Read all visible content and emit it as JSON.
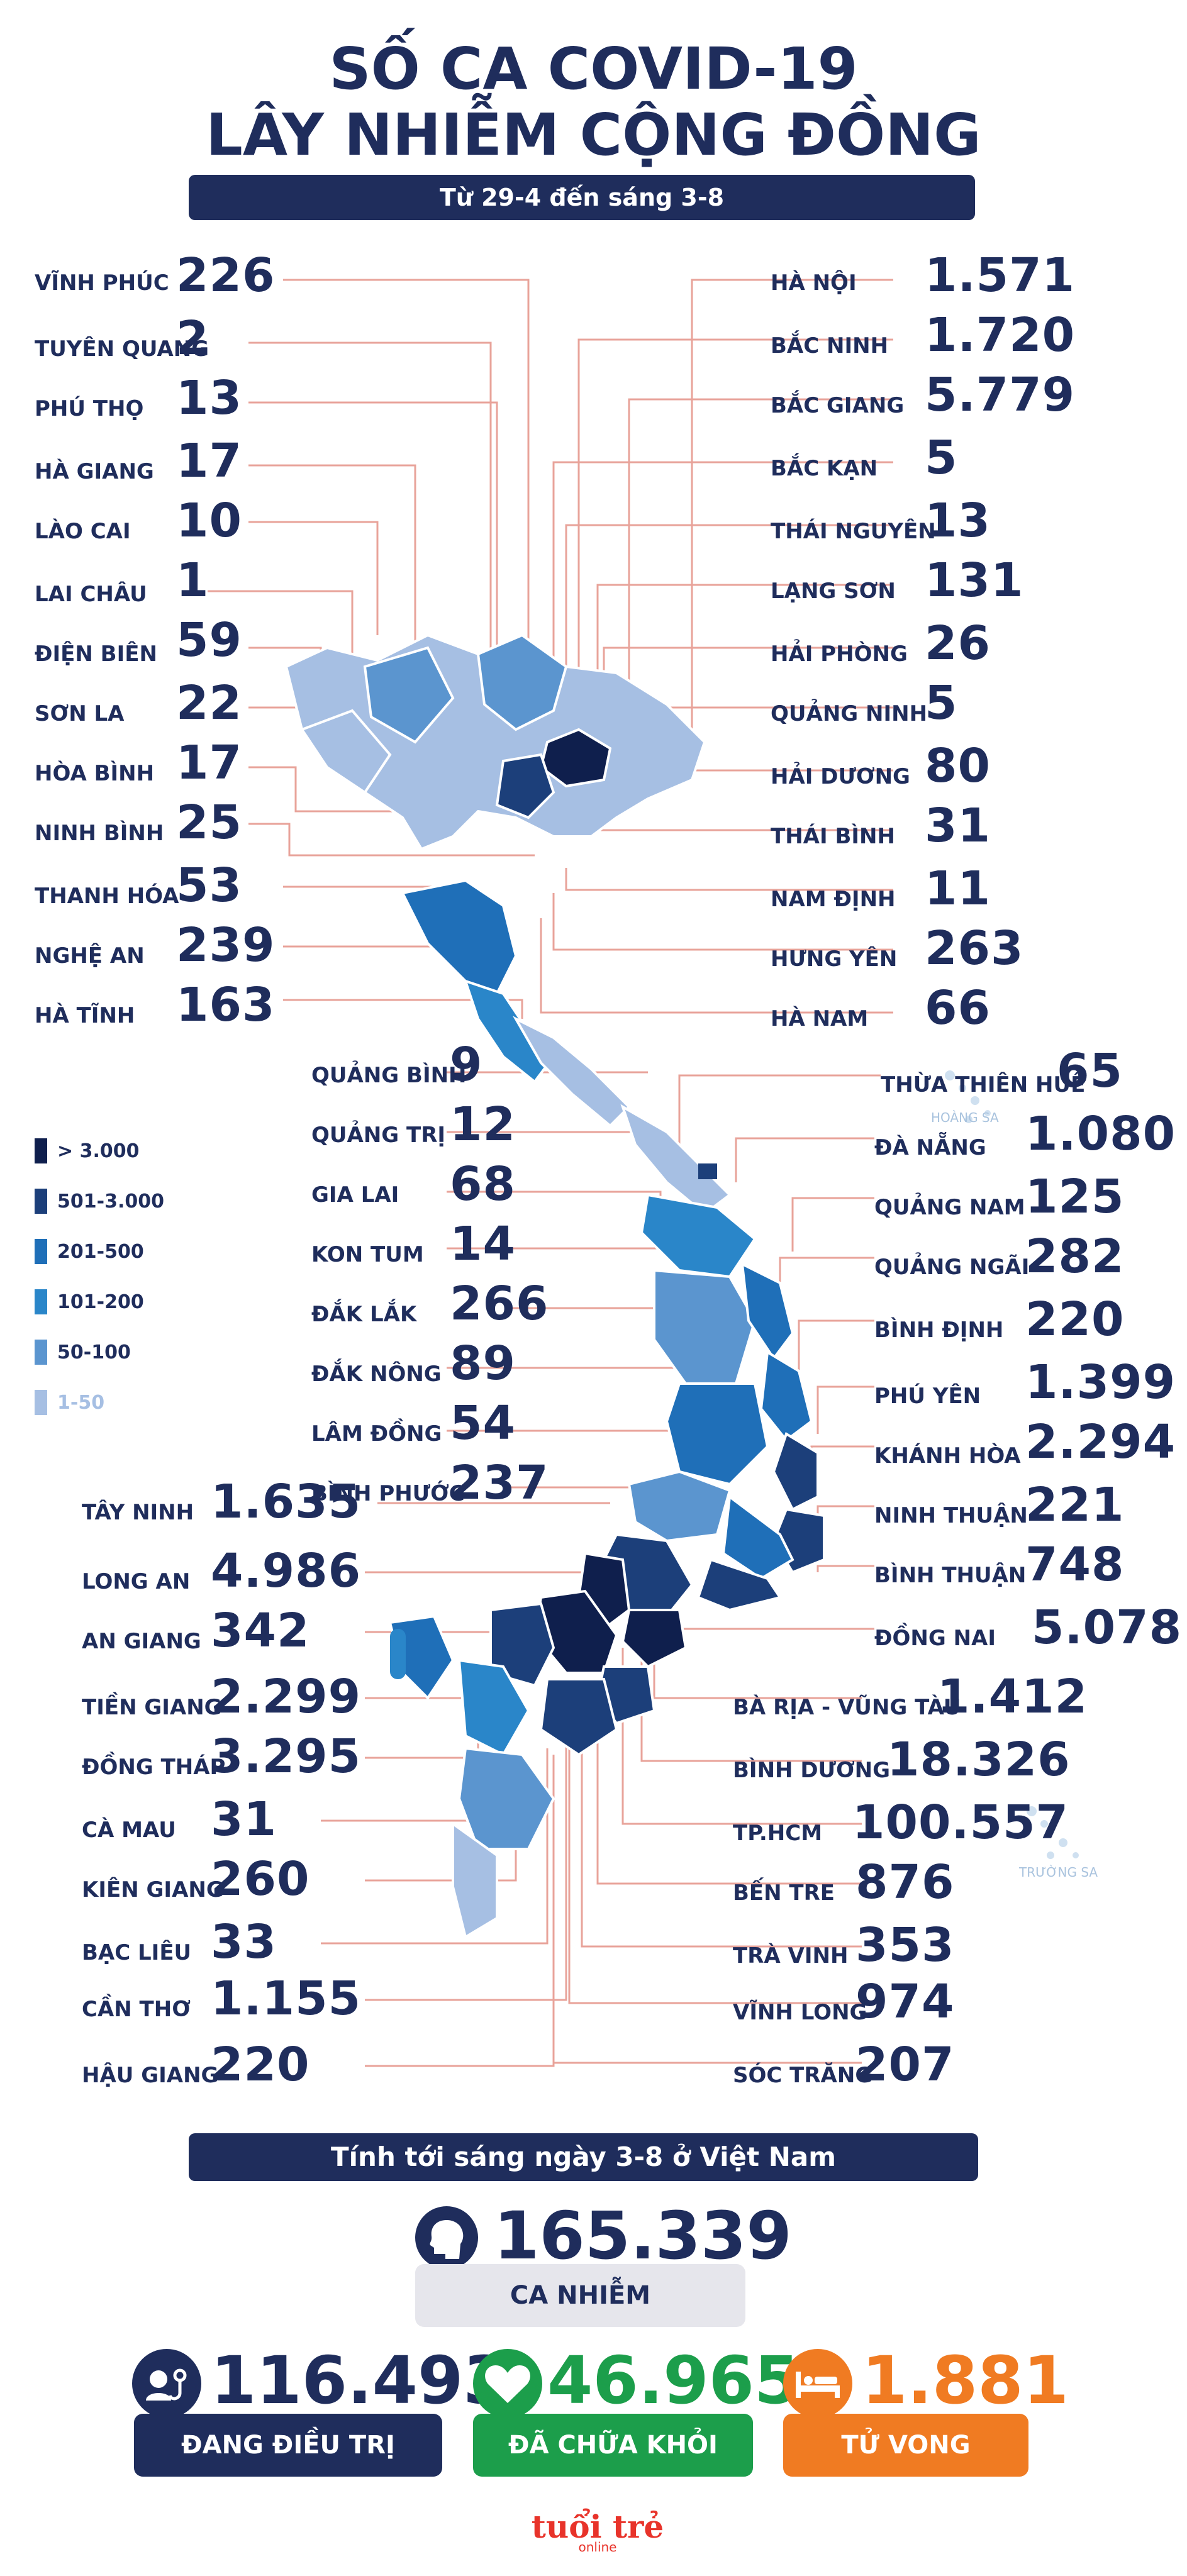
{
  "header": {
    "title_line1": "SỐ CA COVID-19",
    "title_line2": "LÂY NHIỄM CỘNG ĐỒNG",
    "subtitle": "Từ 29-4 đến sáng 3-8"
  },
  "left_provinces": [
    {
      "name": "VĨNH PHÚC",
      "value": "226"
    },
    {
      "name": "TUYÊN QUANG",
      "value": "2"
    },
    {
      "name": "PHÚ THỌ",
      "value": "13"
    },
    {
      "name": "HÀ GIANG",
      "value": "17"
    },
    {
      "name": "LÀO CAI",
      "value": "10"
    },
    {
      "name": "LAI CHÂU",
      "value": "1"
    },
    {
      "name": "ĐIỆN BIÊN",
      "value": "59"
    },
    {
      "name": "SƠN LA",
      "value": "22"
    },
    {
      "name": "HÒA BÌNH",
      "value": "17"
    },
    {
      "name": "NINH BÌNH",
      "value": "25"
    },
    {
      "name": "THANH HÓA",
      "value": "53"
    },
    {
      "name": "NGHỆ AN",
      "value": "239"
    },
    {
      "name": "HÀ TĨNH",
      "value": "163"
    }
  ],
  "right_provinces": [
    {
      "name": "HÀ NỘI",
      "value": "1.571"
    },
    {
      "name": "BẮC NINH",
      "value": "1.720"
    },
    {
      "name": "BẮC GIANG",
      "value": "5.779"
    },
    {
      "name": "BẮC KẠN",
      "value": "5"
    },
    {
      "name": "THÁI NGUYÊN",
      "value": "13"
    },
    {
      "name": "LẠNG SƠN",
      "value": "131"
    },
    {
      "name": "HẢI PHÒNG",
      "value": "26"
    },
    {
      "name": "QUẢNG NINH",
      "value": "5"
    },
    {
      "name": "HẢI DƯƠNG",
      "value": "80"
    },
    {
      "name": "THÁI BÌNH",
      "value": "31"
    },
    {
      "name": "NAM ĐỊNH",
      "value": "11"
    },
    {
      "name": "HƯNG YÊN",
      "value": "263"
    },
    {
      "name": "HÀ NAM",
      "value": "66"
    }
  ],
  "central_left": [
    {
      "name": "QUẢNG BÌNH",
      "value": "9"
    },
    {
      "name": "QUẢNG TRỊ",
      "value": "12"
    },
    {
      "name": "GIA LAI",
      "value": "68"
    },
    {
      "name": "KON TUM",
      "value": "14"
    },
    {
      "name": "ĐẮK LẮK",
      "value": "266"
    },
    {
      "name": "ĐẮK NÔNG",
      "value": "89"
    },
    {
      "name": "LÂM ĐỒNG",
      "value": "54"
    },
    {
      "name": "BÌNH PHƯỚC",
      "value": "237"
    }
  ],
  "central_right": [
    {
      "name": "THỪA THIÊN HUẾ",
      "value": "65"
    },
    {
      "name": "ĐÀ NẴNG",
      "value": "1.080"
    },
    {
      "name": "QUẢNG NAM",
      "value": "125"
    },
    {
      "name": "QUẢNG NGÃI",
      "value": "282"
    },
    {
      "name": "BÌNH ĐỊNH",
      "value": "220"
    },
    {
      "name": "PHÚ YÊN",
      "value": "1.399"
    },
    {
      "name": "KHÁNH HÒA",
      "value": "2.294"
    },
    {
      "name": "NINH THUẬN",
      "value": "221"
    },
    {
      "name": "BÌNH THUẬN",
      "value": "748"
    },
    {
      "name": "ĐỒNG NAI",
      "value": "5.078"
    }
  ],
  "south_left": [
    {
      "name": "TÂY NINH",
      "value": "1.635"
    },
    {
      "name": "LONG AN",
      "value": "4.986"
    },
    {
      "name": "AN GIANG",
      "value": "342"
    },
    {
      "name": "TIỀN GIANG",
      "value": "2.299"
    },
    {
      "name": "ĐỒNG THÁP",
      "value": "3.295"
    },
    {
      "name": "CÀ MAU",
      "value": "31"
    },
    {
      "name": "KIÊN GIANG",
      "value": "260"
    },
    {
      "name": "BẠC LIÊU",
      "value": "33"
    },
    {
      "name": "CẦN THƠ",
      "value": "1.155"
    },
    {
      "name": "HẬU GIANG",
      "value": "220"
    }
  ],
  "south_right": [
    {
      "name": "BÀ RỊA - VŨNG TÀU",
      "value": "1.412"
    },
    {
      "name": "BÌNH DƯƠNG",
      "value": "18.326"
    },
    {
      "name": "TP.HCM",
      "value": "100.557"
    },
    {
      "name": "BẾN TRE",
      "value": "876"
    },
    {
      "name": "TRÀ VINH",
      "value": "353"
    },
    {
      "name": "VĨNH LONG",
      "value": "974"
    },
    {
      "name": "SÓC TRĂNG",
      "value": "207"
    }
  ],
  "legend": [
    {
      "label": "> 3.000",
      "color": "#0f1f4d"
    },
    {
      "label": "501-3.000",
      "color": "#1c3f7a"
    },
    {
      "label": "201-500",
      "color": "#1f6fb8"
    },
    {
      "label": "101-200",
      "color": "#2a86c9"
    },
    {
      "label": "50-100",
      "color": "#5b95cf"
    },
    {
      "label": "1-50",
      "color": "#a6bfe3"
    }
  ],
  "map_labels": {
    "hoang_sa": "HOÀNG SA",
    "truong_sa": "TRƯỜNG SA"
  },
  "summary": {
    "band": "Tính tới sáng ngày 3-8 ở Việt Nam",
    "total_value": "165.339",
    "total_label": "CA NHIỄM",
    "treating_value": "116.493",
    "treating_label": "ĐANG ĐIỀU TRỊ",
    "recovered_value": "46.965",
    "recovered_label": "ĐÃ CHỮA KHỎI",
    "deaths_value": "1.881",
    "deaths_label": "TỬ VONG"
  },
  "colors": {
    "navy": "#1f2d5c",
    "green": "#1c9e4b",
    "orange": "#f07b22",
    "grey_box": "#e6e6ec",
    "line": "#e8a39a"
  },
  "logo": {
    "brand": "tuổi trẻ",
    "sub": "online"
  }
}
